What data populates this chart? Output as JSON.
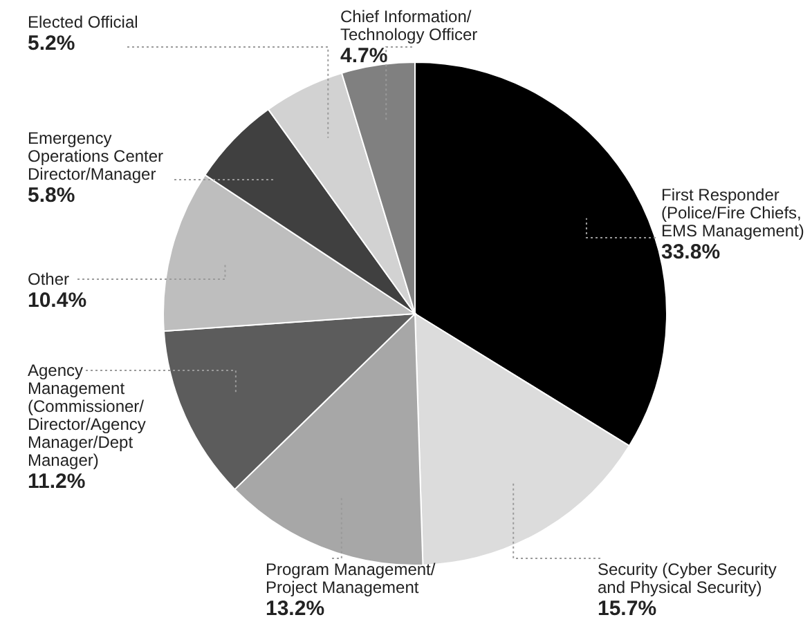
{
  "chart_data": {
    "type": "pie",
    "categories": [
      "First Responder (Police/Fire Chiefs, EMS Management)",
      "Security (Cyber Security and Physical Security)",
      "Program Management/ Project Management",
      "Agency Management (Commissioner/ Director/Agency Manager/Dept Manager)",
      "Other",
      "Emergency Operations Center Director/Manager",
      "Elected Official",
      "Chief Information/ Technology Officer"
    ],
    "values": [
      33.8,
      15.7,
      13.2,
      11.2,
      10.4,
      5.8,
      5.2,
      4.7
    ],
    "value_labels": [
      "33.8%",
      "15.7%",
      "13.2%",
      "11.2%",
      "10.4%",
      "5.8%",
      "5.2%",
      "4.7%"
    ],
    "colors": [
      "#000000",
      "#dcdcdc",
      "#a7a7a7",
      "#5c5c5c",
      "#bebebe",
      "#404040",
      "#d2d2d2",
      "#808080"
    ]
  }
}
